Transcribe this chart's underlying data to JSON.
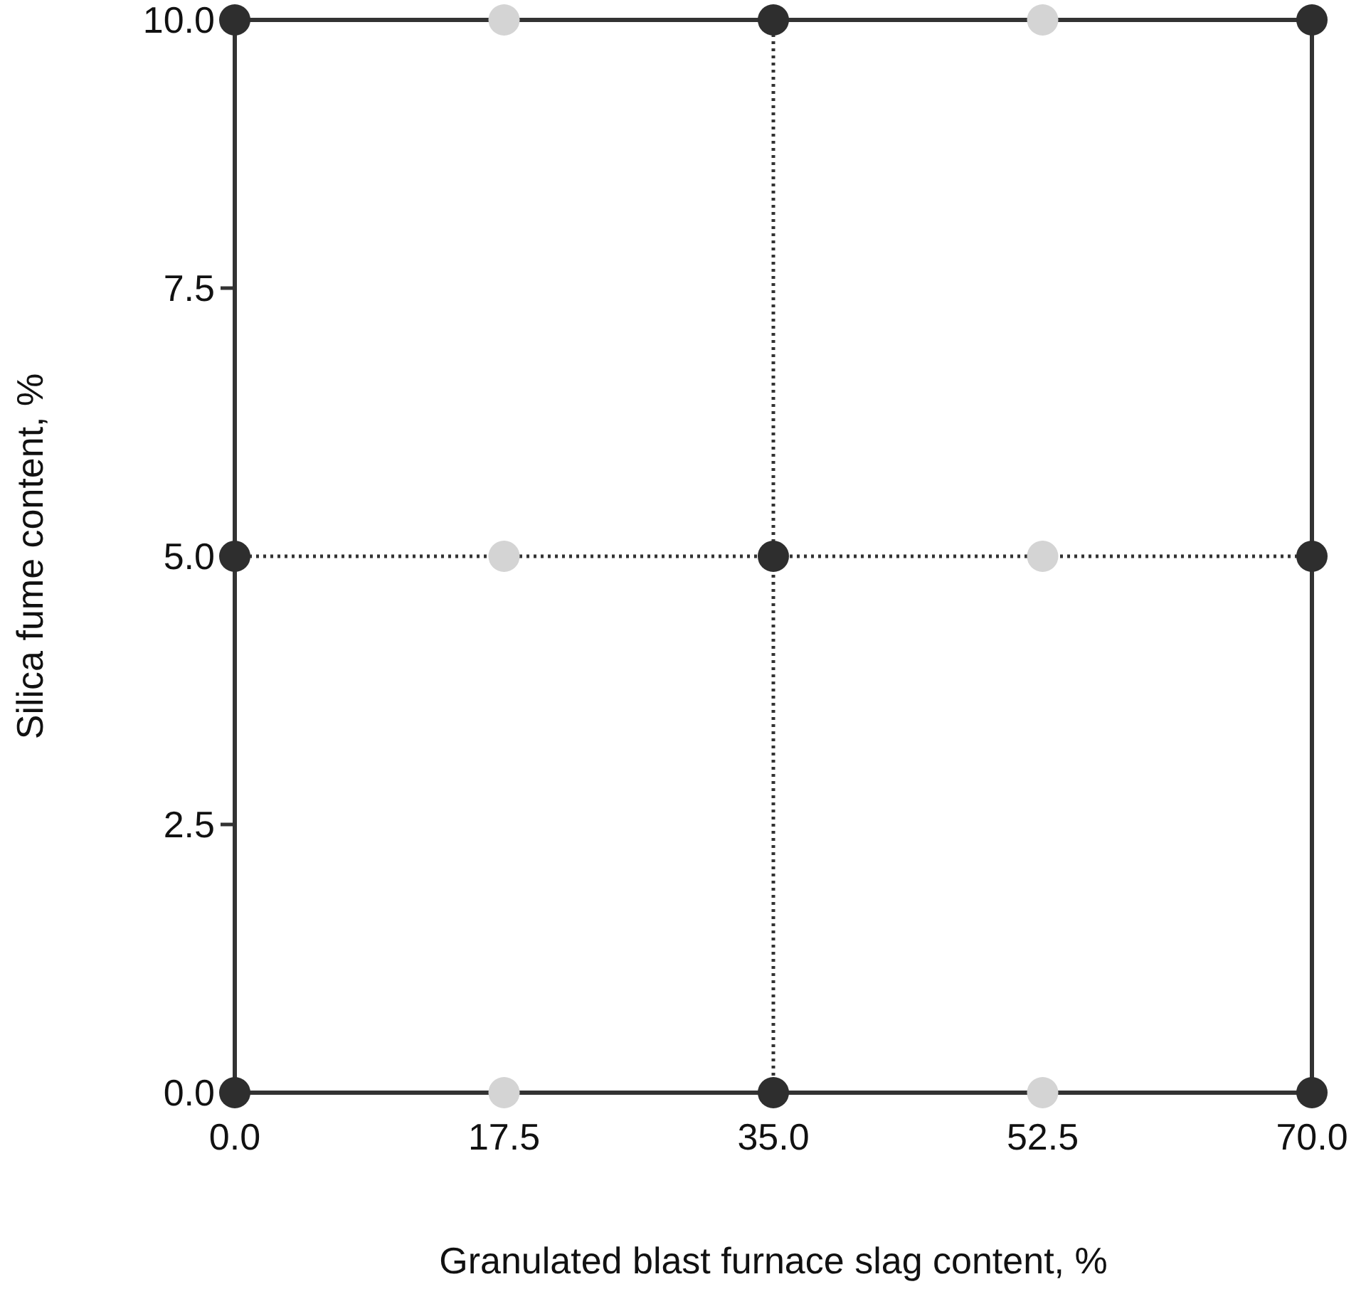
{
  "chart_data": {
    "type": "scatter",
    "xlabel": "Granulated blast furnace slag content, %",
    "ylabel": "Silica fume content, %",
    "xlim": [
      0,
      70
    ],
    "ylim": [
      0,
      10
    ],
    "xticks": [
      {
        "value": 0,
        "label": "0.0"
      },
      {
        "value": 17.5,
        "label": "17.5"
      },
      {
        "value": 35,
        "label": "35.0"
      },
      {
        "value": 52.5,
        "label": "52.5"
      },
      {
        "value": 70,
        "label": "70.0"
      }
    ],
    "yticks": [
      {
        "value": 0,
        "label": "0.0"
      },
      {
        "value": 2.5,
        "label": "2.5"
      },
      {
        "value": 5,
        "label": "5.0"
      },
      {
        "value": 7.5,
        "label": "7.5"
      },
      {
        "value": 10,
        "label": "10.0"
      }
    ],
    "series": [
      {
        "color": "#2e2e2e",
        "x": [
          0,
          35,
          70,
          0,
          35,
          70,
          0,
          35,
          70
        ],
        "values": [
          0,
          0,
          0,
          5,
          5,
          5,
          10,
          10,
          10
        ]
      },
      {
        "color": "#d4d4d4",
        "x": [
          17.5,
          52.5,
          17.5,
          52.5,
          17.5,
          52.5
        ],
        "values": [
          0,
          0,
          5,
          5,
          10,
          10
        ]
      }
    ],
    "ref_lines": [
      {
        "axis": "x",
        "value": 35,
        "color": "#333333",
        "line_style": "dotted"
      },
      {
        "axis": "y",
        "value": 5,
        "color": "#333333",
        "line_style": "dotted"
      }
    ],
    "marker": "circle",
    "grid": false
  }
}
